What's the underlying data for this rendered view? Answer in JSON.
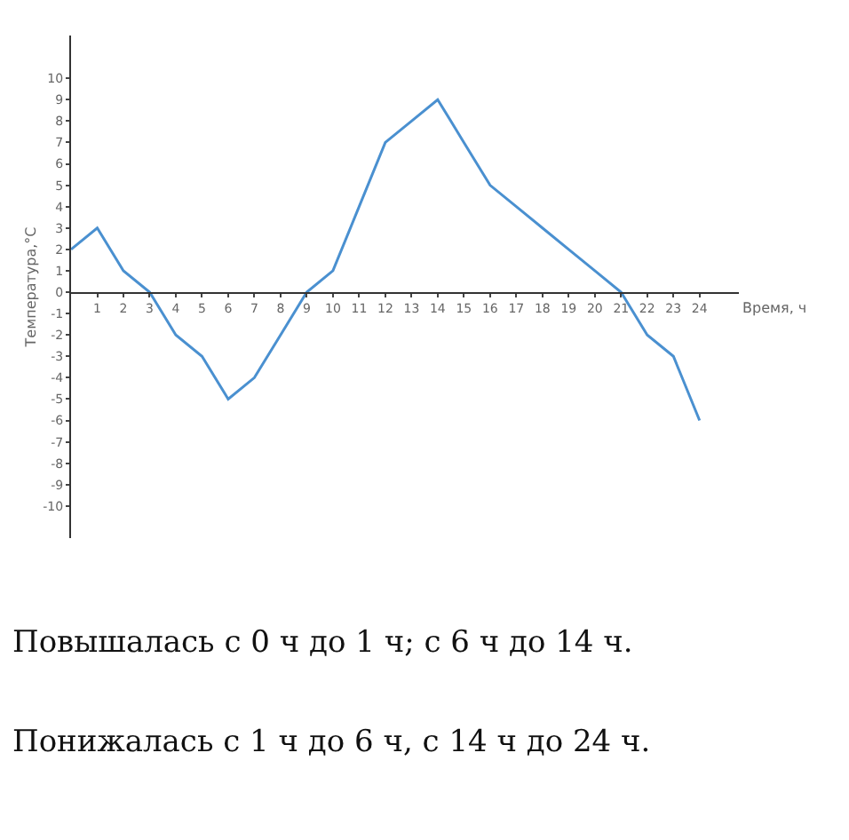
{
  "chart_data": {
    "type": "line",
    "xlabel": "Время, ч",
    "ylabel": "Температура,°С",
    "x": [
      0,
      1,
      2,
      3,
      4,
      5,
      6,
      7,
      8,
      9,
      10,
      11,
      12,
      13,
      14,
      15,
      16,
      17,
      18,
      19,
      20,
      21,
      22,
      23,
      24
    ],
    "series": [
      {
        "color": "#4a90d0",
        "values": [
          2,
          3,
          1,
          0,
          -2,
          -3,
          -5,
          -4,
          -2,
          0,
          1,
          4,
          7,
          8,
          9,
          7,
          5,
          4,
          3,
          2,
          1,
          0,
          -2,
          -3,
          -6
        ]
      }
    ],
    "xlim": [
      0,
      25.5
    ],
    "ylim": [
      -11.5,
      12
    ],
    "xticks": [
      1,
      2,
      3,
      4,
      5,
      6,
      7,
      8,
      9,
      10,
      11,
      12,
      13,
      14,
      15,
      16,
      17,
      18,
      19,
      20,
      21,
      22,
      23,
      24
    ],
    "yticks": [
      -10,
      -9,
      -8,
      -7,
      -6,
      -5,
      -4,
      -3,
      -2,
      -1,
      0,
      1,
      2,
      3,
      4,
      5,
      6,
      7,
      8,
      9,
      10
    ],
    "legend": false,
    "marker": "none",
    "line_style": "solid",
    "annotations": [
      "Повышалась с 0 ч до 1 ч; с 6 ч до 14 ч.",
      "Понижалась с 1 ч до 6 ч, с 14 ч до 24 ч."
    ]
  }
}
